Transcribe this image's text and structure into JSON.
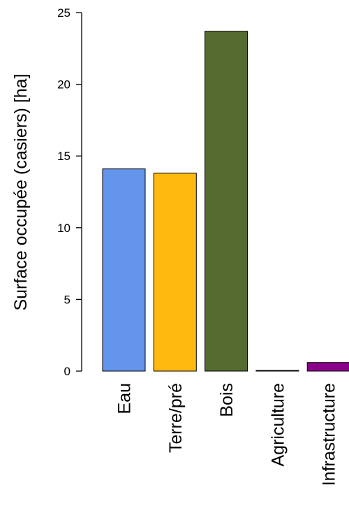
{
  "chart_data": {
    "type": "bar",
    "title": "",
    "xlabel": "",
    "ylabel": "Surface occupée (casiers) [ha]",
    "categories": [
      "Eau",
      "Terre/pré",
      "Bois",
      "Agriculture",
      "Infrastructure"
    ],
    "values": [
      14.1,
      13.8,
      23.7,
      0.02,
      0.6
    ],
    "colors": [
      "#6495ED",
      "#FFB90F",
      "#556B2F",
      "#8B008B",
      "#8B008B"
    ],
    "ylim": [
      0,
      25
    ],
    "yticks": [
      "0",
      "5",
      "10",
      "15",
      "20",
      "25"
    ],
    "grid": false,
    "legend": "none"
  }
}
